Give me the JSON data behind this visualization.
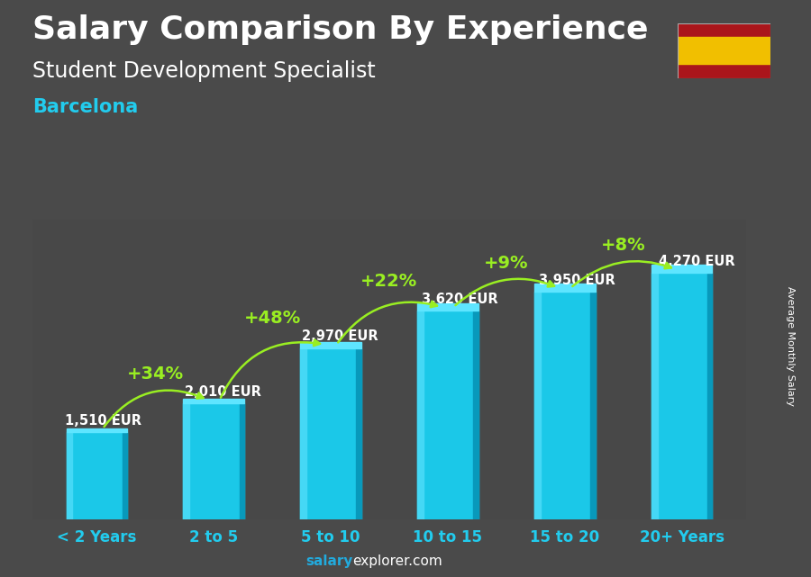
{
  "title": "Salary Comparison By Experience",
  "subtitle": "Student Development Specialist",
  "city": "Barcelona",
  "ylabel": "Average Monthly Salary",
  "footer_bold": "salary",
  "footer_plain": "explorer.com",
  "categories": [
    "< 2 Years",
    "2 to 5",
    "5 to 10",
    "10 to 15",
    "15 to 20",
    "20+ Years"
  ],
  "values": [
    1510,
    2010,
    2970,
    3620,
    3950,
    4270
  ],
  "labels": [
    "1,510 EUR",
    "2,010 EUR",
    "2,970 EUR",
    "3,620 EUR",
    "3,950 EUR",
    "4,270 EUR"
  ],
  "pct_changes": [
    "+34%",
    "+48%",
    "+22%",
    "+9%",
    "+8%"
  ],
  "bar_color_main": "#1BC8E8",
  "bar_color_left": "#45D8F5",
  "bar_color_right": "#0899BB",
  "bar_color_top": "#5EE5FF",
  "bg_color": "#4a4a4a",
  "title_color": "#ffffff",
  "subtitle_color": "#ffffff",
  "city_color": "#22CCEE",
  "label_color": "#ffffff",
  "pct_color": "#99EE22",
  "arrow_color": "#99EE22",
  "footer_bold_color": "#22AADD",
  "footer_plain_color": "#ffffff",
  "ylabel_color": "#ffffff",
  "cat_color": "#22CCEE",
  "ylim": [
    0,
    5200
  ],
  "title_fontsize": 26,
  "subtitle_fontsize": 17,
  "city_fontsize": 15,
  "label_fontsize": 10.5,
  "pct_fontsize": 14,
  "cat_fontsize": 12,
  "ylabel_fontsize": 8
}
